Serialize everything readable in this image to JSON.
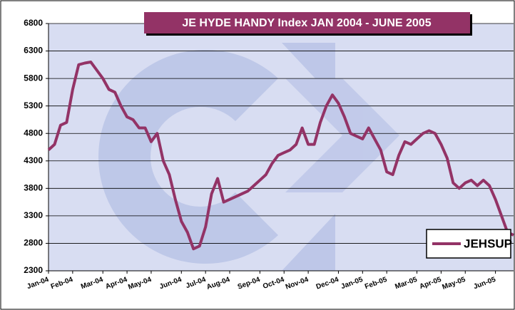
{
  "chart_data": {
    "type": "line",
    "title": "JE HYDE HANDY Index JAN 2004 - JUNE 2005",
    "categories": [
      "Jan-04",
      null,
      null,
      null,
      "Feb-04",
      null,
      null,
      null,
      null,
      "Mar-04",
      null,
      null,
      null,
      "Apr-04",
      null,
      null,
      null,
      "May-04",
      null,
      null,
      null,
      null,
      "Jun-04",
      null,
      null,
      null,
      "Jul-04",
      null,
      null,
      null,
      "Aug-04",
      null,
      null,
      null,
      null,
      "Sep-04",
      null,
      null,
      null,
      "Oct-04",
      null,
      null,
      null,
      "Nov-04",
      null,
      null,
      null,
      null,
      "Dec-04",
      null,
      null,
      null,
      "Jan-05",
      null,
      null,
      null,
      "Feb-05",
      null,
      null,
      null,
      null,
      "Mar-05",
      null,
      null,
      null,
      "Apr-05",
      null,
      null,
      null,
      "May-05",
      null,
      null,
      null,
      null,
      "Jun-05",
      null,
      null,
      null
    ],
    "series": [
      {
        "name": "JEHSUP",
        "color": "#933366",
        "values": [
          4500,
          4600,
          4950,
          5000,
          5600,
          6050,
          6080,
          6100,
          5950,
          5800,
          5600,
          5550,
          5300,
          5100,
          5050,
          4900,
          4900,
          4650,
          4800,
          4300,
          4050,
          3600,
          3200,
          3000,
          2700,
          2750,
          3100,
          3700,
          3980,
          3550,
          3600,
          3650,
          3700,
          3750,
          3850,
          3950,
          4050,
          4250,
          4400,
          4450,
          4500,
          4600,
          4900,
          4600,
          4600,
          5000,
          5300,
          5500,
          5350,
          5100,
          4800,
          4750,
          4700,
          4900,
          4700,
          4500,
          4100,
          4050,
          4400,
          4650,
          4600,
          4700,
          4800,
          4850,
          4800,
          4600,
          4350,
          3900,
          3800,
          3900,
          3950,
          3850,
          3950,
          3850,
          3600,
          3300,
          3000,
          2950
        ]
      }
    ],
    "ylim": [
      2300,
      6800
    ],
    "yticks": [
      2300,
      2800,
      3300,
      3800,
      4300,
      4800,
      5300,
      5800,
      6300,
      6800
    ],
    "grid": true,
    "legend": "lower right"
  }
}
